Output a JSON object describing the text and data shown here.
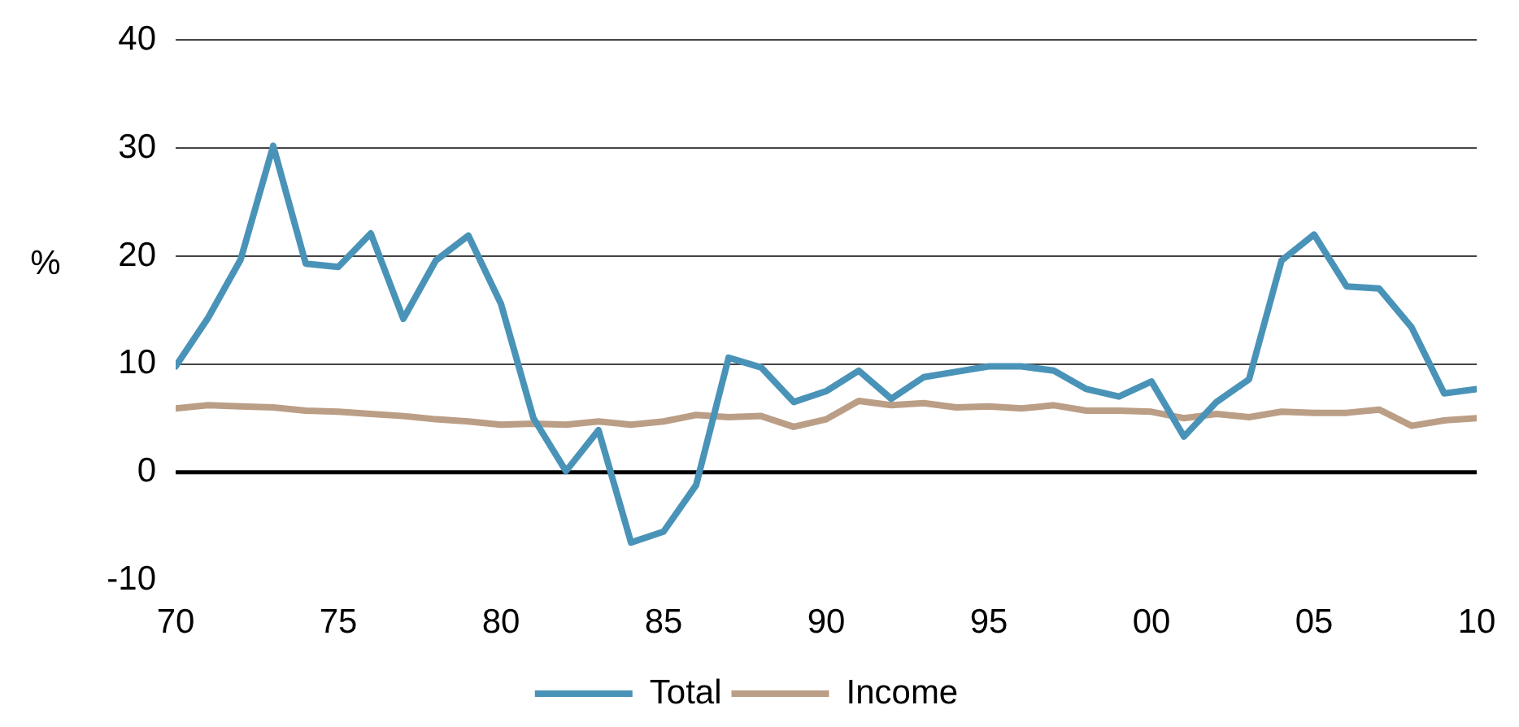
{
  "chart_data": {
    "type": "line",
    "ylabel": "%",
    "x": [
      1970,
      1971,
      1972,
      1973,
      1974,
      1975,
      1976,
      1977,
      1978,
      1979,
      1980,
      1981,
      1982,
      1983,
      1984,
      1985,
      1986,
      1987,
      1988,
      1989,
      1990,
      1991,
      1992,
      1993,
      1994,
      1995,
      1996,
      1997,
      1998,
      1999,
      2000,
      2001,
      2002,
      2003,
      2004,
      2005,
      2006,
      2007,
      2008,
      2009,
      2010
    ],
    "series": [
      {
        "name": "Total",
        "color": "#4a93b8",
        "values": [
          9.8,
          14.3,
          19.7,
          30.2,
          19.3,
          19.0,
          22.1,
          14.2,
          19.6,
          21.9,
          15.6,
          5.0,
          0.1,
          3.9,
          -6.5,
          -5.5,
          -1.2,
          10.6,
          9.7,
          6.5,
          7.5,
          9.4,
          6.8,
          8.8,
          9.3,
          9.8,
          9.8,
          9.4,
          7.7,
          7.0,
          8.4,
          3.3,
          6.5,
          8.6,
          19.6,
          22.0,
          17.2,
          17.0,
          13.4,
          7.3,
          7.7
        ]
      },
      {
        "name": "Income",
        "color": "#bb9e86",
        "values": [
          5.9,
          6.2,
          6.1,
          6.0,
          5.7,
          5.6,
          5.4,
          5.2,
          4.9,
          4.7,
          4.4,
          4.5,
          4.4,
          4.7,
          4.4,
          4.7,
          5.3,
          5.1,
          5.2,
          4.2,
          4.9,
          6.6,
          6.2,
          6.4,
          6.0,
          6.1,
          5.9,
          6.2,
          5.7,
          5.7,
          5.6,
          5.0,
          5.4,
          5.1,
          5.6,
          5.5,
          5.5,
          5.8,
          4.3,
          4.8,
          5.0
        ]
      }
    ],
    "xlim": [
      1970,
      2010
    ],
    "xticks": [
      {
        "value": 1970,
        "label": "70"
      },
      {
        "value": 1975,
        "label": "75"
      },
      {
        "value": 1980,
        "label": "80"
      },
      {
        "value": 1985,
        "label": "85"
      },
      {
        "value": 1990,
        "label": "90"
      },
      {
        "value": 1995,
        "label": "95"
      },
      {
        "value": 2000,
        "label": "00"
      },
      {
        "value": 2005,
        "label": "05"
      },
      {
        "value": 2010,
        "label": "10"
      }
    ],
    "ylim": [
      -10,
      40
    ],
    "yticks": [
      -10,
      0,
      10,
      20,
      30,
      40
    ],
    "ref_lines": [
      {
        "axis": "y",
        "value": 0,
        "color": "#000000"
      }
    ],
    "grid": "y",
    "legend": "bottom",
    "marker": "none",
    "line_style": "solid"
  }
}
